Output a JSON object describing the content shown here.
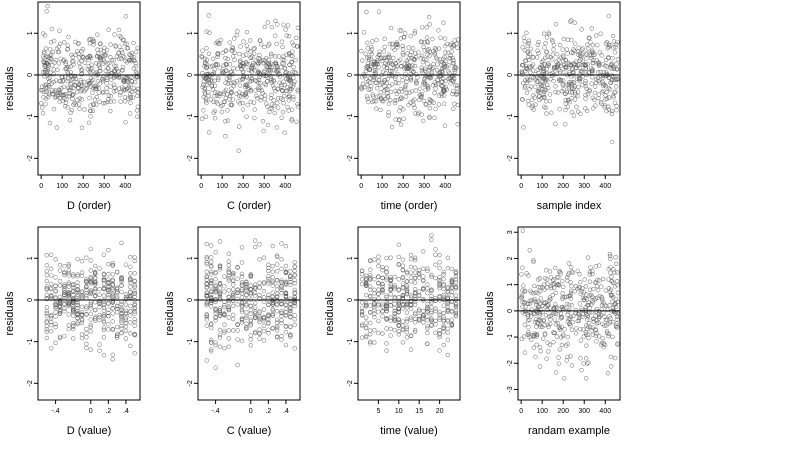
{
  "colors": {
    "point": "#555555",
    "frame": "#000000",
    "zero_line": "#000000",
    "background": "#ffffff"
  },
  "charts": [
    {
      "type": "scatter",
      "xlabel": "D (order)",
      "ylabel": "residuals",
      "xlim": [
        -15,
        470
      ],
      "ylim": [
        -2.4,
        1.75
      ],
      "xticks": [
        0,
        100,
        200,
        300,
        400
      ],
      "yticks": [
        -2,
        -1,
        0,
        1
      ],
      "x_kind": "index",
      "x_levels": [],
      "seed": 11,
      "hline": 0
    },
    {
      "type": "scatter",
      "xlabel": "C (order)",
      "ylabel": "residuals",
      "xlim": [
        -15,
        470
      ],
      "ylim": [
        -2.4,
        1.75
      ],
      "xticks": [
        0,
        100,
        200,
        300,
        400
      ],
      "yticks": [
        -2,
        -1,
        0,
        1
      ],
      "x_kind": "index",
      "x_levels": [],
      "seed": 23,
      "hline": 0
    },
    {
      "type": "scatter",
      "xlabel": "time (order)",
      "ylabel": "residuals",
      "xlim": [
        -15,
        470
      ],
      "ylim": [
        -2.4,
        1.75
      ],
      "xticks": [
        0,
        100,
        200,
        300,
        400
      ],
      "yticks": [
        -2,
        -1,
        0,
        1
      ],
      "x_kind": "index",
      "x_levels": [],
      "seed": 37,
      "hline": 0
    },
    {
      "type": "scatter",
      "xlabel": "sample index",
      "ylabel": "residuals",
      "xlim": [
        -15,
        470
      ],
      "ylim": [
        -2.4,
        1.75
      ],
      "xticks": [
        0,
        100,
        200,
        300,
        400
      ],
      "yticks": [
        -2,
        -1,
        0,
        1
      ],
      "x_kind": "index",
      "x_levels": [],
      "seed": 41,
      "hline": 0
    },
    {
      "type": "scatter",
      "xlabel": "D (value)",
      "ylabel": "residuals",
      "xlim": [
        -0.6,
        0.56
      ],
      "ylim": [
        -2.4,
        1.75
      ],
      "xticks": [
        -0.4,
        0.0,
        0.2,
        0.4
      ],
      "yticks": [
        -2,
        -1,
        0,
        1
      ],
      "x_kind": "discrete",
      "x_levels": [
        -0.5,
        -0.45,
        -0.4,
        -0.35,
        -0.3,
        -0.25,
        -0.2,
        -0.15,
        -0.1,
        -0.05,
        0.0,
        0.05,
        0.1,
        0.15,
        0.2,
        0.25,
        0.3,
        0.35,
        0.4,
        0.45,
        0.5
      ],
      "seed": 53,
      "hline": 0
    },
    {
      "type": "scatter",
      "xlabel": "C (value)",
      "ylabel": "residuals",
      "xlim": [
        -0.6,
        0.56
      ],
      "ylim": [
        -2.4,
        1.75
      ],
      "xticks": [
        -0.4,
        0.0,
        0.2,
        0.4
      ],
      "yticks": [
        -2,
        -1,
        0,
        1
      ],
      "x_kind": "discrete",
      "x_levels": [
        -0.5,
        -0.45,
        -0.4,
        -0.35,
        -0.3,
        -0.25,
        -0.2,
        -0.15,
        -0.1,
        -0.05,
        0.0,
        0.05,
        0.1,
        0.15,
        0.2,
        0.25,
        0.3,
        0.35,
        0.4,
        0.45,
        0.5
      ],
      "seed": 67,
      "hline": 0
    },
    {
      "type": "scatter",
      "xlabel": "time (value)",
      "ylabel": "residuals",
      "xlim": [
        0,
        25
      ],
      "ylim": [
        -2.4,
        1.75
      ],
      "xticks": [
        5,
        10,
        15,
        20
      ],
      "yticks": [
        -2,
        -1,
        0,
        1
      ],
      "x_kind": "discrete",
      "x_levels": [
        1,
        2,
        3,
        4,
        5,
        6,
        7,
        8,
        9,
        10,
        11,
        12,
        13,
        14,
        15,
        16,
        17,
        18,
        19,
        20,
        21,
        22,
        23,
        24
      ],
      "seed": 79,
      "hline": 0
    },
    {
      "type": "scatter",
      "xlabel": "randam example",
      "ylabel": "residuals",
      "xlim": [
        -15,
        470
      ],
      "ylim": [
        -3.4,
        3.2
      ],
      "xticks": [
        0,
        100,
        200,
        300,
        400
      ],
      "yticks": [
        -3,
        -2,
        -1,
        0,
        1,
        2,
        3
      ],
      "x_kind": "index",
      "x_levels": [],
      "seed": 97,
      "hline": 0
    }
  ]
}
